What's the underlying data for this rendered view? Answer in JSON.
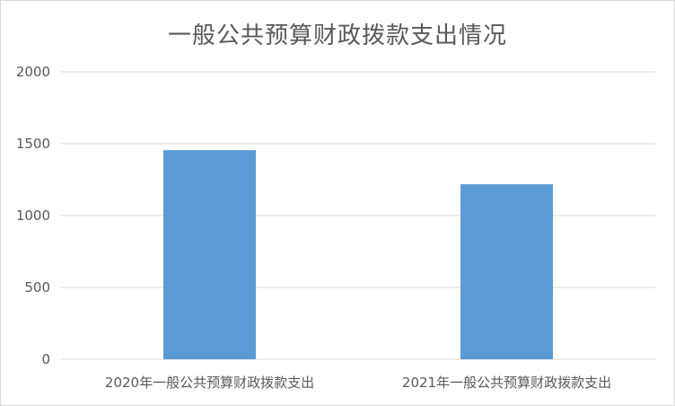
{
  "chart_data": {
    "type": "bar",
    "title": "一般公共预算财政拨款支出情况",
    "categories": [
      "2020年一般公共预算财政拨款支出",
      "2021年一般公共预算财政拨款支出"
    ],
    "values": [
      1455,
      1218
    ],
    "ylim": [
      0,
      2000
    ],
    "yticks": [
      "0",
      "500",
      "1000",
      "1500",
      "2000"
    ],
    "grid": true,
    "bar_color": "#5b9bd5",
    "grid_color": "#d9d9d9"
  }
}
